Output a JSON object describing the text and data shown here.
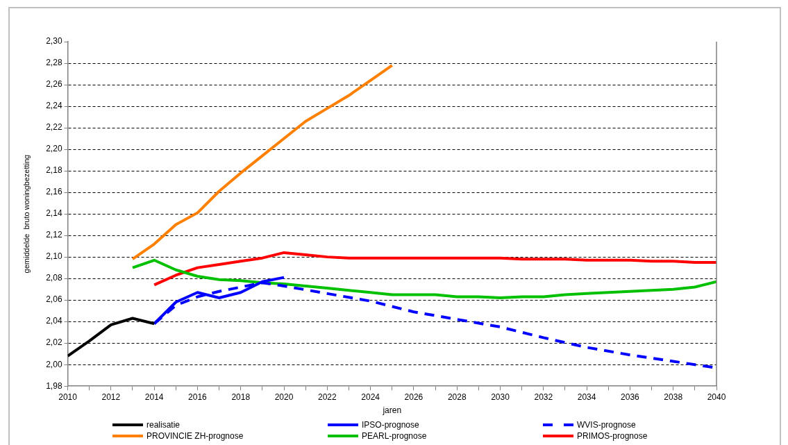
{
  "chart_data": {
    "type": "line",
    "xlabel": "jaren",
    "ylabel": "gemiddelde  bruto woningbezetting",
    "xlim": [
      2010,
      2040
    ],
    "xticks": [
      2010,
      {
        "value": 2011,
        "label": null
      },
      2012,
      {
        "value": 2013,
        "label": null
      },
      2014,
      {
        "value": 2015,
        "label": null
      },
      2016,
      {
        "value": 2017,
        "label": null
      },
      2018,
      {
        "value": 2019,
        "label": null
      },
      2020,
      {
        "value": 2021,
        "label": null
      },
      2022,
      {
        "value": 2023,
        "label": null
      },
      2024,
      {
        "value": 2025,
        "label": null
      },
      2026,
      {
        "value": 2027,
        "label": null
      },
      2028,
      {
        "value": 2029,
        "label": null
      },
      2030,
      {
        "value": 2031,
        "label": null
      },
      2032,
      {
        "value": 2033,
        "label": null
      },
      2034,
      {
        "value": 2035,
        "label": null
      },
      2036,
      {
        "value": 2037,
        "label": null
      },
      2038,
      {
        "value": 2039,
        "label": null
      },
      2040
    ],
    "ylim": [
      1.98,
      2.3
    ],
    "yticks": [
      {
        "value": 1.98,
        "label": "1,98"
      },
      {
        "value": 2,
        "label": "2,00"
      },
      {
        "value": 2.02,
        "label": "2,02"
      },
      {
        "value": 2.04,
        "label": "2,04"
      },
      {
        "value": 2.06,
        "label": "2,06"
      },
      {
        "value": 2.08,
        "label": "2,08"
      },
      {
        "value": 2.1,
        "label": "2,10"
      },
      {
        "value": 2.12,
        "label": "2,12"
      },
      {
        "value": 2.14,
        "label": "2,14"
      },
      {
        "value": 2.16,
        "label": "2,16"
      },
      {
        "value": 2.18,
        "label": "2,18"
      },
      {
        "value": 2.2,
        "label": "2,20"
      },
      {
        "value": 2.22,
        "label": "2,22"
      },
      {
        "value": 2.24,
        "label": "2,24"
      },
      {
        "value": 2.26,
        "label": "2,26"
      },
      {
        "value": 2.28,
        "label": "2,28"
      },
      {
        "value": 2.3,
        "label": "2,30"
      }
    ],
    "grid": "y",
    "legend": "bottom",
    "marker": "none",
    "series": [
      {
        "name": "realisatie",
        "color": "#000000",
        "x": [
          2010,
          2011,
          2012,
          2013,
          2014
        ],
        "values": [
          2.008,
          2.022,
          2.037,
          2.043,
          2.038
        ]
      },
      {
        "name": "IPSO-prognose",
        "color": "#0000ff",
        "x": [
          2014,
          2015,
          2016,
          2017,
          2018,
          2019,
          2020
        ],
        "values": [
          2.038,
          2.058,
          2.067,
          2.062,
          2.067,
          2.077,
          2.081
        ]
      },
      {
        "name": "WVIS-prognose",
        "color": "#0000ff",
        "line_style": "dashed",
        "x": [
          2014,
          2015,
          2016,
          2017,
          2018,
          2019,
          2020,
          2022,
          2024,
          2026,
          2028,
          2030,
          2032,
          2034,
          2036,
          2038,
          2040
        ],
        "values": [
          2.038,
          2.055,
          2.063,
          2.068,
          2.072,
          2.076,
          2.073,
          2.066,
          2.059,
          2.049,
          2.042,
          2.035,
          2.025,
          2.016,
          2.009,
          2.003,
          1.997
        ]
      },
      {
        "name": "PROVINCIE ZH-prognose",
        "color": "#ff8000",
        "x": [
          2013,
          2014,
          2015,
          2016,
          2017,
          2018,
          2019,
          2020,
          2021,
          2022,
          2023,
          2024,
          2025
        ],
        "values": [
          2.098,
          2.112,
          2.13,
          2.141,
          2.161,
          2.178,
          2.194,
          2.21,
          2.226,
          2.238,
          2.25,
          2.264,
          2.278
        ]
      },
      {
        "name": "PEARL-prognose",
        "color": "#00c000",
        "x": [
          2013,
          2014,
          2015,
          2016,
          2017,
          2018,
          2019,
          2020,
          2021,
          2022,
          2023,
          2024,
          2025,
          2026,
          2027,
          2028,
          2029,
          2030,
          2031,
          2032,
          2033,
          2034,
          2035,
          2036,
          2037,
          2038,
          2039,
          2040
        ],
        "values": [
          2.09,
          2.097,
          2.088,
          2.082,
          2.079,
          2.078,
          2.076,
          2.075,
          2.073,
          2.071,
          2.069,
          2.067,
          2.065,
          2.065,
          2.065,
          2.063,
          2.063,
          2.062,
          2.063,
          2.063,
          2.065,
          2.066,
          2.067,
          2.068,
          2.069,
          2.07,
          2.072,
          2.077
        ]
      },
      {
        "name": "PRIMOS-prognose",
        "color": "#ff0000",
        "x": [
          2014,
          2015,
          2016,
          2017,
          2018,
          2019,
          2020,
          2021,
          2022,
          2023,
          2024,
          2025,
          2026,
          2027,
          2028,
          2029,
          2030,
          2031,
          2032,
          2033,
          2034,
          2035,
          2036,
          2037,
          2038,
          2039,
          2040
        ],
        "values": [
          2.074,
          2.083,
          2.09,
          2.093,
          2.096,
          2.099,
          2.104,
          2.102,
          2.1,
          2.099,
          2.099,
          2.099,
          2.099,
          2.099,
          2.099,
          2.099,
          2.099,
          2.098,
          2.098,
          2.098,
          2.097,
          2.097,
          2.097,
          2.096,
          2.096,
          2.095,
          2.095
        ]
      }
    ]
  }
}
